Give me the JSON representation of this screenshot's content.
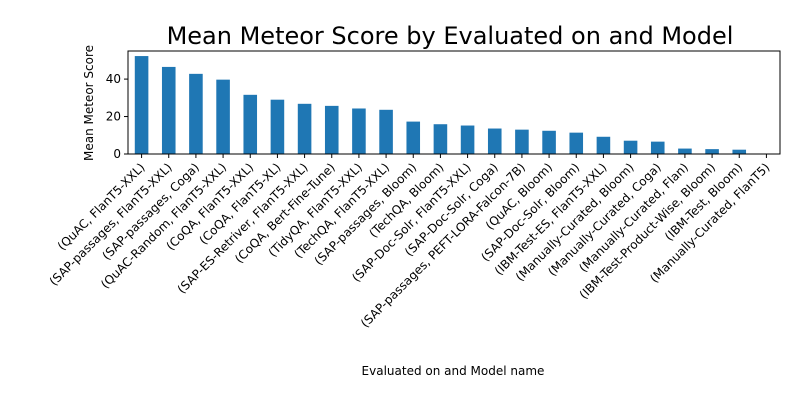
{
  "chart_data": {
    "type": "bar",
    "title": "Mean Meteor Score by Evaluated on and Model",
    "xlabel": "Evaluated on and Model name",
    "ylabel": "Mean Meteor Score",
    "ylim": [
      0,
      55
    ],
    "yticks": [
      0,
      20,
      40
    ],
    "grid": false,
    "bar_color": "#1f77b4",
    "categories": [
      "(QuAC, FlanT5-XXL)",
      "(SAP-passages, FlanT5-XXL)",
      "(SAP-passages, Coga)",
      "(QuAC-Random, FlanT5-XXL)",
      "(CoQA, FlanT5-XXL)",
      "(CoQA, FlanT5-XL)",
      "(SAP-ES-Retriver, FlanT5-XXL)",
      "(CoQA, Bert-Fine-Tune)",
      "(TidyQA, FlanT5-XXL)",
      "(TechQA, FlanT5-XXL)",
      "(SAP-passages, Bloom)",
      "(TechQA, Bloom)",
      "(SAP-Doc-Solr, FlanT5-XXL)",
      "(SAP-Doc-Solr, Coga)",
      "(SAP-passages, PEFT-LORA-Falcon-7B)",
      "(QuAC, Bloom)",
      "(SAP-Doc-Solr, Bloom)",
      "(IBM-Test-ES, FlanT5-XXL)",
      "(Manually-Curated, Bloom)",
      "(Manually-Curated, Coga)",
      "(Manually-Curated, Flan)",
      "(IBM-Test-Product-Wise, Bloom)",
      "(IBM-Test, Bloom)",
      "(Manually-Curated, FlanT5)"
    ],
    "values": [
      52.3,
      46.5,
      42.8,
      39.7,
      31.6,
      29.0,
      26.8,
      25.7,
      24.3,
      23.6,
      17.3,
      15.9,
      15.2,
      13.6,
      13.0,
      12.4,
      11.4,
      9.2,
      7.1,
      6.6,
      2.9,
      2.6,
      2.3,
      0.0
    ]
  }
}
